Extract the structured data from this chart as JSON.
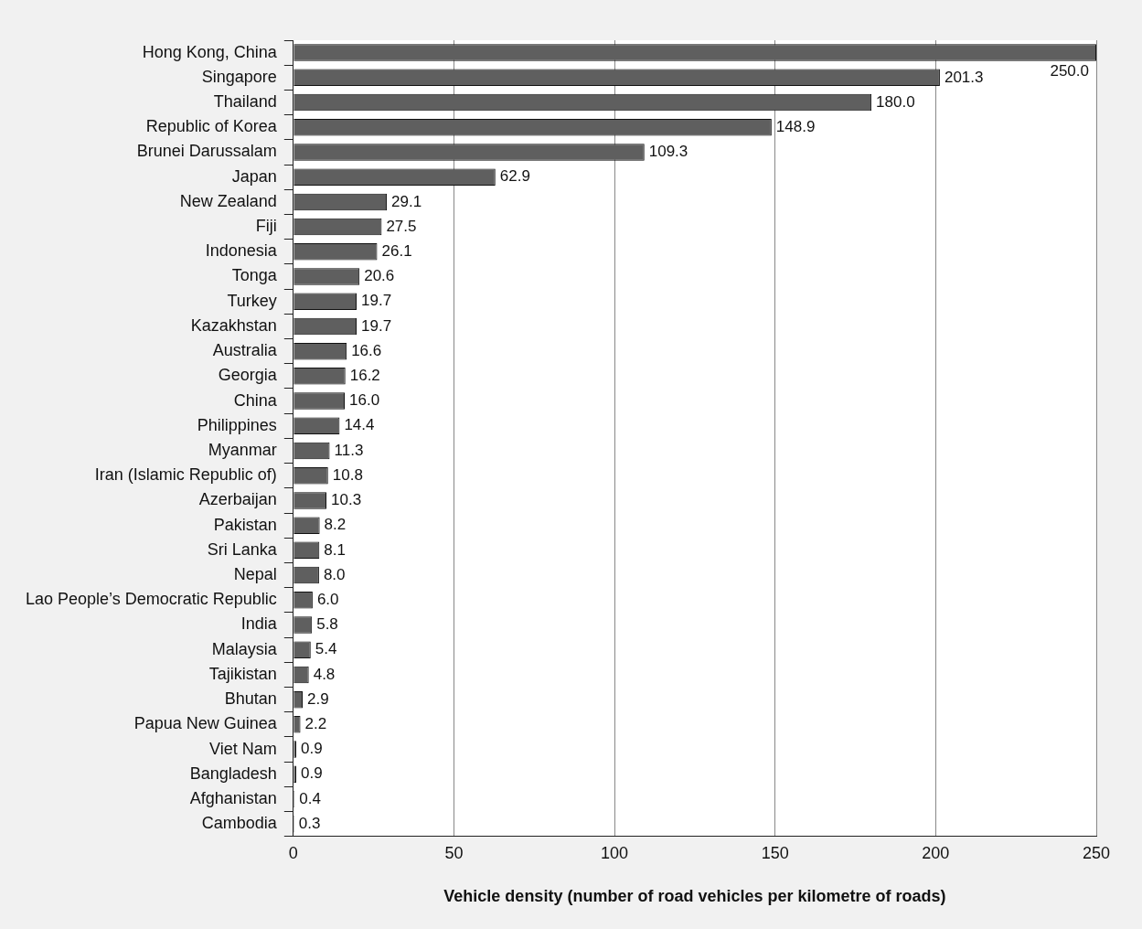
{
  "chart_data": {
    "type": "bar",
    "orientation": "horizontal",
    "xlabel": "Vehicle density (number of road vehicles per kilometre of roads)",
    "categories": [
      "Hong Kong, China",
      "Singapore",
      "Thailand",
      "Republic of Korea",
      "Brunei Darussalam",
      "Japan",
      "New Zealand",
      "Fiji",
      "Indonesia",
      "Tonga",
      "Turkey",
      "Kazakhstan",
      "Australia",
      "Georgia",
      "China",
      "Philippines",
      "Myanmar",
      "Iran (Islamic Republic of)",
      "Azerbaijan",
      "Pakistan",
      "Sri Lanka",
      "Nepal",
      "Lao People’s Democratic Republic",
      "India",
      "Malaysia",
      "Tajikistan",
      "Bhutan",
      "Papua New Guinea",
      "Viet Nam",
      "Bangladesh",
      "Afghanistan",
      "Cambodia"
    ],
    "values": [
      250.0,
      201.3,
      180.0,
      148.9,
      109.3,
      62.9,
      29.1,
      27.5,
      26.1,
      20.6,
      19.7,
      19.7,
      16.6,
      16.2,
      16.0,
      14.4,
      11.3,
      10.8,
      10.3,
      8.2,
      8.1,
      8.0,
      6.0,
      5.8,
      5.4,
      4.8,
      2.9,
      2.2,
      0.9,
      0.9,
      0.4,
      0.3
    ],
    "value_labels": [
      "250.0",
      "201.3",
      "180.0",
      "148.9",
      "109.3",
      "62.9",
      "29.1",
      "27.5",
      "26.1",
      "20.6",
      "19.7",
      "19.7",
      "16.6",
      "16.2",
      "16.0",
      "14.4",
      "11.3",
      "10.8",
      "10.3",
      "8.2",
      "8.1",
      "8.0",
      "6.0",
      "5.8",
      "5.4",
      "4.8",
      "2.9",
      "2.2",
      "0.9",
      "0.9",
      "0.4",
      "0.3"
    ],
    "color": "#5f5f5f",
    "xlim": [
      0,
      250
    ],
    "xticks": [
      0,
      50,
      100,
      150,
      200,
      250
    ],
    "grid": "x"
  }
}
